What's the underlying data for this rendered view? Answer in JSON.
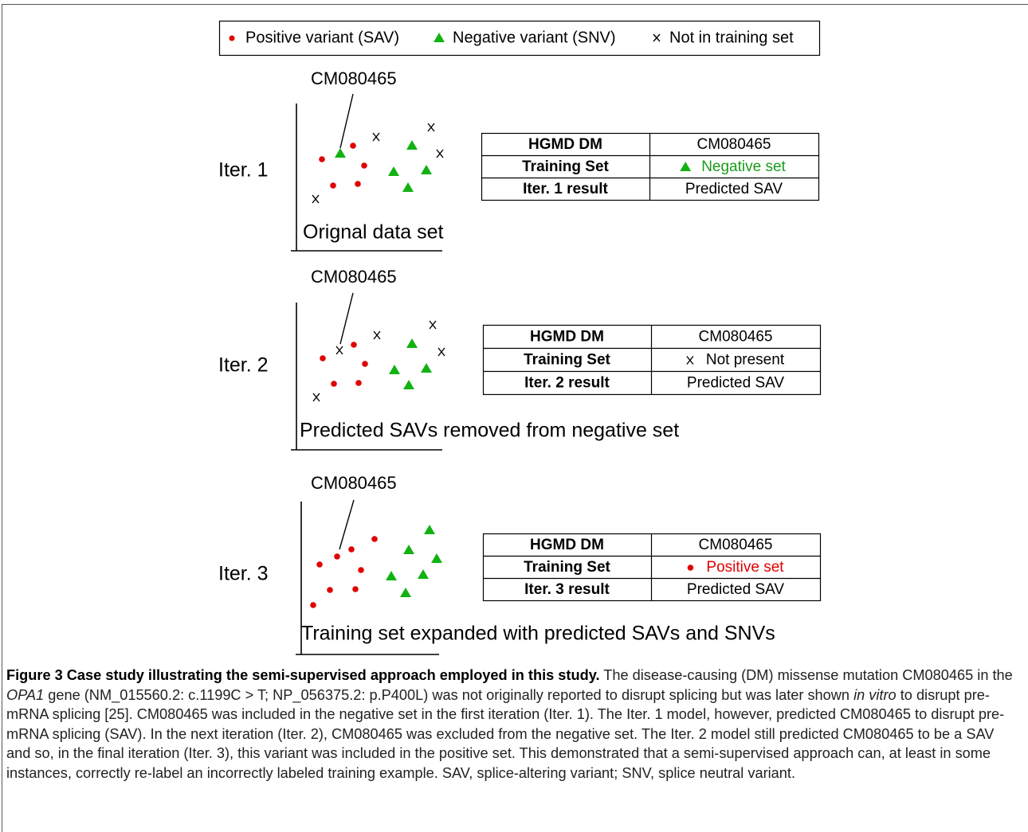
{
  "legend": {
    "items": [
      "Positive variant (SAV)",
      "Negative variant (SNV)",
      "Not in training set"
    ]
  },
  "panels": [
    {
      "label": "Iter. 1",
      "callout": "CM080465",
      "note": "Orignal data set",
      "table": [
        [
          "HGMD DM",
          "CM080465"
        ],
        [
          "Training Set",
          "Negative set"
        ],
        [
          "Iter. 1 result",
          "Predicted SAV"
        ]
      ]
    },
    {
      "label": "Iter. 2",
      "callout": "CM080465",
      "note": "Predicted SAVs removed from negative set",
      "table": [
        [
          "HGMD DM",
          "CM080465"
        ],
        [
          "Training Set",
          "Not present"
        ],
        [
          "Iter. 2 result",
          "Predicted SAV"
        ]
      ]
    },
    {
      "label": "Iter. 3",
      "callout": "CM080465",
      "note": "Training set expanded with predicted SAVs and SNVs",
      "table": [
        [
          "HGMD DM",
          "CM080465"
        ],
        [
          "Training Set",
          "Positive set"
        ],
        [
          "Iter. 3 result",
          "Predicted SAV"
        ]
      ]
    }
  ],
  "caption": {
    "title": "Figure 3 Case study illustrating the semi-supervised approach employed in this study.",
    "runs": [
      " The disease-causing (DM) missense mutation CM080465 in the ",
      {
        "text": "OPA1",
        "italic": true
      },
      " gene (NM_015560.2: c.1199C > T; NP_056375.2: p.P400L) was not originally reported to disrupt splicing but was later shown ",
      {
        "text": "in vitro",
        "italic": true
      },
      " to disrupt pre-mRNA splicing [25]. CM080465 was included in the negative set in the first iteration (Iter. 1). The Iter. 1 model, however, predicted CM080465 to disrupt pre-mRNA splicing (SAV). In the next iteration (Iter. 2), CM080465 was excluded from the negative set. The Iter. 2 model still predicted CM080465 to be a SAV and so, in the final iteration (Iter. 3), this variant was included in the positive set. This demonstrated that a semi-supervised approach can, at least in some instances, correctly re-label an incorrectly labeled training example. SAV, splice-altering variant; SNV, splice neutral variant."
    ]
  }
}
